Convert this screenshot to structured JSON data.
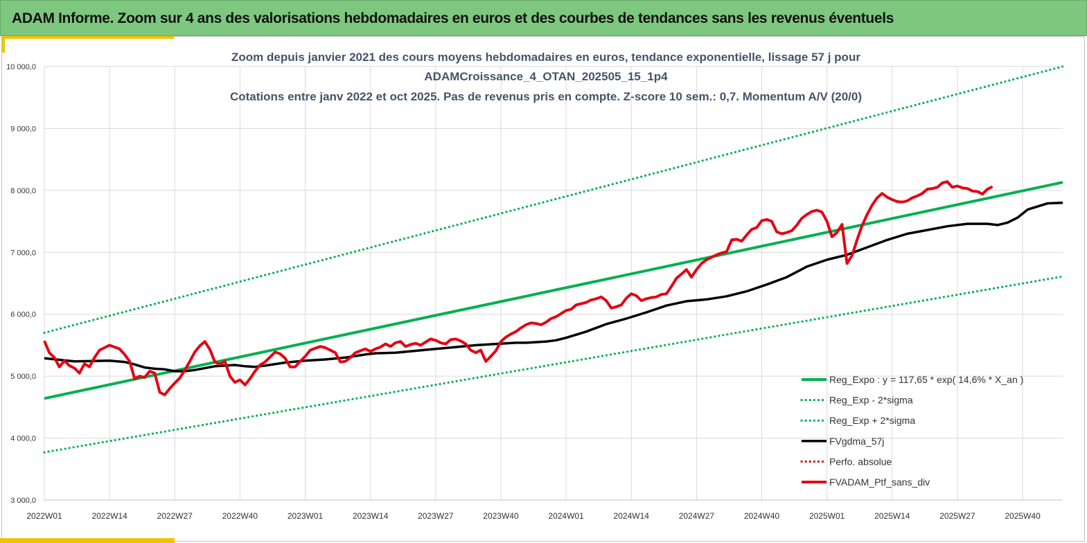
{
  "header": {
    "title": "ADAM Informe. Zoom sur 4 ans des valorisations hebdomadaires en euros et des courbes de tendances sans les revenus éventuels"
  },
  "colors": {
    "banner": "#7dc77f",
    "accent": "#f2c200",
    "trend": "#00b050",
    "mma": "#000000",
    "price": "#e30613",
    "title": "#44546a"
  },
  "chart_data": {
    "type": "line",
    "title_lines": [
      "Zoom depuis janvier 2021 des cours moyens hebdomadaires  en euros, tendance exponentielle, lissage 57 j pour",
      "ADAMCroissance_4_OTAN_202505_15_1p4",
      "Cotations  entre janv 2022 et oct 2025. Pas de revenus pris en compte. Z-score 10 sem.: 0,7. Momentum A/V (20/0)"
    ],
    "xlabel": "",
    "ylabel": "",
    "ylim": [
      3000,
      10000
    ],
    "y_ticks": [
      "3 000,0",
      "4 000,0",
      "5 000,0",
      "6 000,0",
      "7 000,0",
      "8 000,0",
      "9 000,0",
      "10 000,0"
    ],
    "x_ticks": [
      "2022W01",
      "2022W14",
      "2022W27",
      "2022W40",
      "2023W01",
      "2023W14",
      "2023W27",
      "2023W40",
      "2024W01",
      "2024W14",
      "2024W27",
      "2024W40",
      "2025W01",
      "2025W14",
      "2025W27",
      "2025W40"
    ],
    "week_range": [
      0,
      203
    ],
    "grid": true,
    "legend_position": "bottom-right",
    "series": [
      {
        "name": "Reg_Expo : y = 117,65 * exp( 14,6% *  X_an )",
        "style": "solid-thick",
        "color": "#00b050",
        "points": [
          [
            0,
            4640
          ],
          [
            203,
            8130
          ]
        ]
      },
      {
        "name": "Reg_Exp - 2*sigma",
        "style": "dotted",
        "color": "#00b050",
        "points": [
          [
            0,
            3770
          ],
          [
            203,
            6610
          ]
        ]
      },
      {
        "name": "Reg_Exp + 2*sigma",
        "style": "dotted",
        "color": "#00b050",
        "points": [
          [
            0,
            5700
          ],
          [
            203,
            10000
          ]
        ]
      },
      {
        "name": "FVgdma_57j",
        "style": "solid",
        "color": "#000000",
        "points": [
          [
            0,
            5290
          ],
          [
            6,
            5240
          ],
          [
            13,
            5250
          ],
          [
            16,
            5230
          ],
          [
            18,
            5190
          ],
          [
            20,
            5140
          ],
          [
            22,
            5120
          ],
          [
            24,
            5110
          ],
          [
            26,
            5080
          ],
          [
            28,
            5080
          ],
          [
            30,
            5100
          ],
          [
            34,
            5160
          ],
          [
            38,
            5180
          ],
          [
            40,
            5160
          ],
          [
            42,
            5150
          ],
          [
            44,
            5170
          ],
          [
            48,
            5220
          ],
          [
            52,
            5250
          ],
          [
            56,
            5270
          ],
          [
            60,
            5300
          ],
          [
            64,
            5350
          ],
          [
            66,
            5370
          ],
          [
            70,
            5380
          ],
          [
            74,
            5410
          ],
          [
            78,
            5440
          ],
          [
            82,
            5470
          ],
          [
            86,
            5500
          ],
          [
            90,
            5520
          ],
          [
            94,
            5540
          ],
          [
            96,
            5540
          ],
          [
            98,
            5550
          ],
          [
            100,
            5560
          ],
          [
            102,
            5580
          ],
          [
            104,
            5620
          ],
          [
            108,
            5720
          ],
          [
            112,
            5840
          ],
          [
            116,
            5930
          ],
          [
            120,
            6030
          ],
          [
            124,
            6140
          ],
          [
            128,
            6210
          ],
          [
            132,
            6240
          ],
          [
            136,
            6290
          ],
          [
            140,
            6370
          ],
          [
            144,
            6480
          ],
          [
            148,
            6600
          ],
          [
            152,
            6770
          ],
          [
            156,
            6880
          ],
          [
            160,
            6960
          ],
          [
            164,
            7080
          ],
          [
            168,
            7200
          ],
          [
            172,
            7300
          ],
          [
            176,
            7360
          ],
          [
            180,
            7420
          ],
          [
            184,
            7460
          ],
          [
            188,
            7460
          ],
          [
            190,
            7440
          ],
          [
            192,
            7480
          ],
          [
            194,
            7560
          ],
          [
            196,
            7690
          ],
          [
            198,
            7740
          ],
          [
            200,
            7790
          ],
          [
            203,
            7800
          ]
        ]
      },
      {
        "name": "Perfo. absolue",
        "style": "dotted",
        "color": "#e30613",
        "points": []
      },
      {
        "name": "FVADAM_Ptf_sans_div",
        "style": "solid-thick",
        "color": "#e30613",
        "points": [
          [
            0,
            5570
          ],
          [
            1,
            5380
          ],
          [
            2,
            5300
          ],
          [
            3,
            5150
          ],
          [
            4,
            5250
          ],
          [
            5,
            5170
          ],
          [
            6,
            5130
          ],
          [
            7,
            5050
          ],
          [
            8,
            5200
          ],
          [
            9,
            5150
          ],
          [
            10,
            5300
          ],
          [
            11,
            5420
          ],
          [
            12,
            5460
          ],
          [
            13,
            5500
          ],
          [
            14,
            5470
          ],
          [
            15,
            5440
          ],
          [
            16,
            5350
          ],
          [
            17,
            5240
          ],
          [
            18,
            4960
          ],
          [
            19,
            5000
          ],
          [
            20,
            4980
          ],
          [
            21,
            5080
          ],
          [
            22,
            5050
          ],
          [
            23,
            4740
          ],
          [
            24,
            4700
          ],
          [
            25,
            4800
          ],
          [
            26,
            4890
          ],
          [
            27,
            4970
          ],
          [
            28,
            5100
          ],
          [
            29,
            5240
          ],
          [
            30,
            5390
          ],
          [
            31,
            5490
          ],
          [
            32,
            5560
          ],
          [
            33,
            5430
          ],
          [
            34,
            5230
          ],
          [
            35,
            5190
          ],
          [
            36,
            5240
          ],
          [
            37,
            5000
          ],
          [
            38,
            4900
          ],
          [
            39,
            4940
          ],
          [
            40,
            4860
          ],
          [
            41,
            4960
          ],
          [
            42,
            5080
          ],
          [
            43,
            5180
          ],
          [
            44,
            5230
          ],
          [
            45,
            5310
          ],
          [
            46,
            5390
          ],
          [
            47,
            5360
          ],
          [
            48,
            5290
          ],
          [
            49,
            5150
          ],
          [
            50,
            5150
          ],
          [
            51,
            5240
          ],
          [
            52,
            5320
          ],
          [
            53,
            5420
          ],
          [
            54,
            5450
          ],
          [
            55,
            5480
          ],
          [
            56,
            5460
          ],
          [
            57,
            5420
          ],
          [
            58,
            5380
          ],
          [
            59,
            5230
          ],
          [
            60,
            5240
          ],
          [
            61,
            5300
          ],
          [
            62,
            5380
          ],
          [
            63,
            5410
          ],
          [
            64,
            5440
          ],
          [
            65,
            5400
          ],
          [
            66,
            5440
          ],
          [
            67,
            5470
          ],
          [
            68,
            5520
          ],
          [
            69,
            5480
          ],
          [
            70,
            5540
          ],
          [
            71,
            5560
          ],
          [
            72,
            5480
          ],
          [
            73,
            5510
          ],
          [
            74,
            5530
          ],
          [
            75,
            5500
          ],
          [
            76,
            5550
          ],
          [
            77,
            5600
          ],
          [
            78,
            5580
          ],
          [
            79,
            5540
          ],
          [
            80,
            5520
          ],
          [
            81,
            5590
          ],
          [
            82,
            5600
          ],
          [
            83,
            5570
          ],
          [
            84,
            5520
          ],
          [
            85,
            5420
          ],
          [
            86,
            5380
          ],
          [
            87,
            5420
          ],
          [
            88,
            5240
          ],
          [
            89,
            5320
          ],
          [
            90,
            5410
          ],
          [
            91,
            5560
          ],
          [
            92,
            5630
          ],
          [
            93,
            5680
          ],
          [
            94,
            5720
          ],
          [
            95,
            5780
          ],
          [
            96,
            5830
          ],
          [
            97,
            5860
          ],
          [
            98,
            5850
          ],
          [
            99,
            5830
          ],
          [
            100,
            5870
          ],
          [
            101,
            5930
          ],
          [
            102,
            5960
          ],
          [
            103,
            6010
          ],
          [
            104,
            6060
          ],
          [
            105,
            6080
          ],
          [
            106,
            6150
          ],
          [
            107,
            6170
          ],
          [
            108,
            6190
          ],
          [
            109,
            6230
          ],
          [
            110,
            6250
          ],
          [
            111,
            6280
          ],
          [
            112,
            6220
          ],
          [
            113,
            6100
          ],
          [
            114,
            6120
          ],
          [
            115,
            6150
          ],
          [
            116,
            6260
          ],
          [
            117,
            6330
          ],
          [
            118,
            6300
          ],
          [
            119,
            6220
          ],
          [
            120,
            6250
          ],
          [
            121,
            6270
          ],
          [
            122,
            6280
          ],
          [
            123,
            6320
          ],
          [
            124,
            6330
          ],
          [
            125,
            6450
          ],
          [
            126,
            6580
          ],
          [
            127,
            6650
          ],
          [
            128,
            6720
          ],
          [
            129,
            6600
          ],
          [
            130,
            6720
          ],
          [
            131,
            6820
          ],
          [
            132,
            6880
          ],
          [
            133,
            6920
          ],
          [
            134,
            6960
          ],
          [
            135,
            6990
          ],
          [
            136,
            7010
          ],
          [
            137,
            7200
          ],
          [
            138,
            7210
          ],
          [
            139,
            7180
          ],
          [
            140,
            7280
          ],
          [
            141,
            7370
          ],
          [
            142,
            7400
          ],
          [
            143,
            7510
          ],
          [
            144,
            7530
          ],
          [
            145,
            7500
          ],
          [
            146,
            7330
          ],
          [
            147,
            7300
          ],
          [
            148,
            7320
          ],
          [
            149,
            7350
          ],
          [
            150,
            7440
          ],
          [
            151,
            7550
          ],
          [
            152,
            7610
          ],
          [
            153,
            7660
          ],
          [
            154,
            7680
          ],
          [
            155,
            7650
          ],
          [
            156,
            7500
          ],
          [
            157,
            7250
          ],
          [
            158,
            7320
          ],
          [
            159,
            7450
          ],
          [
            160,
            6820
          ],
          [
            161,
            6950
          ],
          [
            162,
            7200
          ],
          [
            163,
            7430
          ],
          [
            164,
            7610
          ],
          [
            165,
            7760
          ],
          [
            166,
            7880
          ],
          [
            167,
            7950
          ],
          [
            168,
            7890
          ],
          [
            169,
            7850
          ],
          [
            170,
            7820
          ],
          [
            171,
            7810
          ],
          [
            172,
            7830
          ],
          [
            173,
            7880
          ],
          [
            174,
            7910
          ],
          [
            175,
            7950
          ],
          [
            176,
            8020
          ],
          [
            177,
            8030
          ],
          [
            178,
            8050
          ],
          [
            179,
            8120
          ],
          [
            180,
            8140
          ],
          [
            181,
            8050
          ],
          [
            182,
            8070
          ],
          [
            183,
            8040
          ],
          [
            184,
            8030
          ],
          [
            185,
            7990
          ],
          [
            186,
            7980
          ],
          [
            187,
            7940
          ],
          [
            188,
            8020
          ],
          [
            189,
            8060
          ]
        ]
      }
    ]
  }
}
